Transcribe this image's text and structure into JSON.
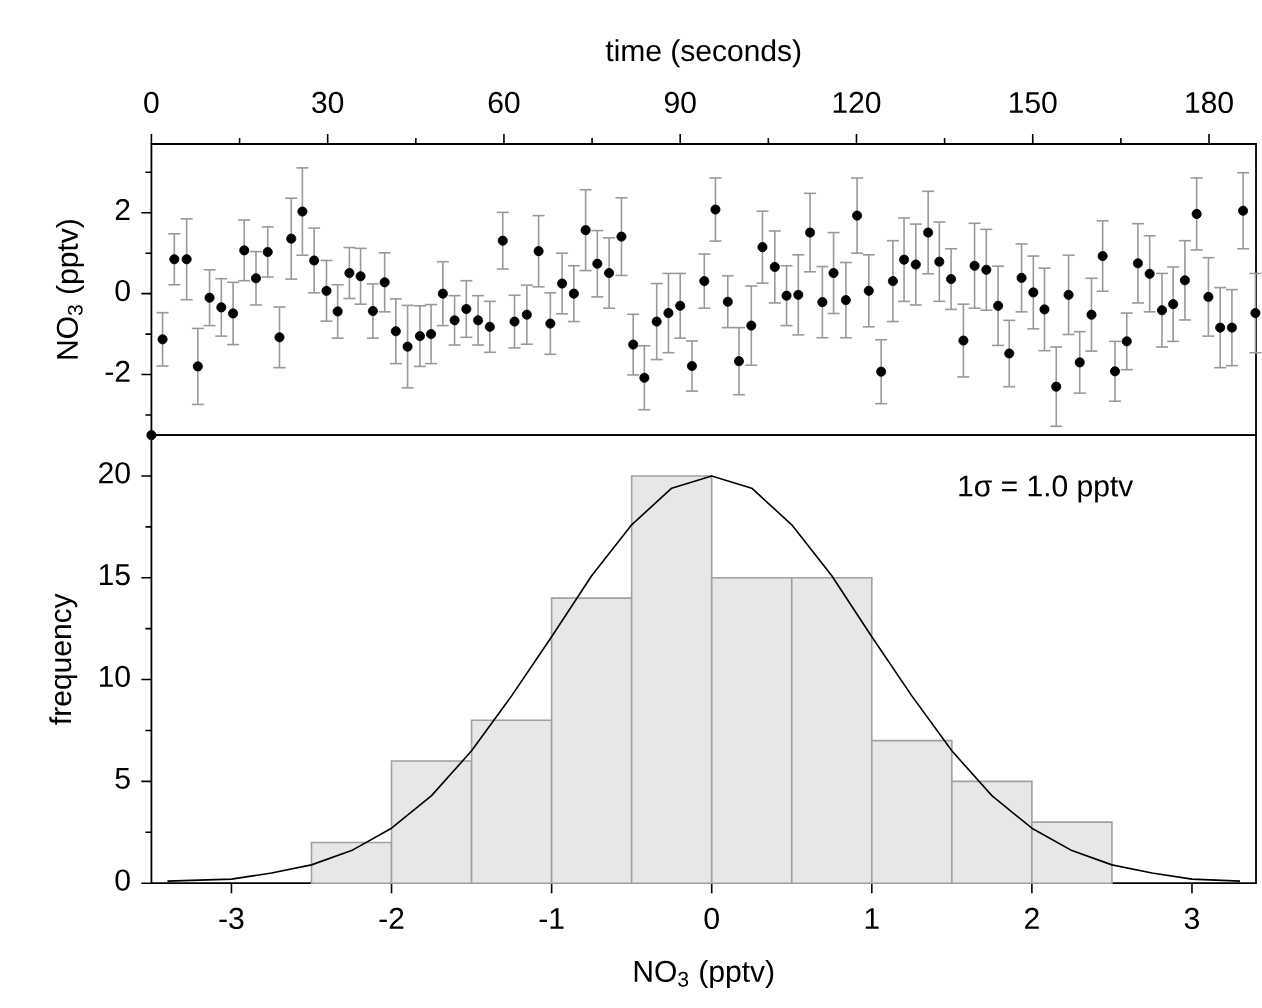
{
  "chart_data": [
    {
      "type": "scatter",
      "xlabel": "time (seconds)",
      "ylabel": "NO$_{3}$ (pptv)",
      "xlim": [
        0,
        188
      ],
      "ylim": [
        -3.5,
        3.7
      ],
      "xticks": [
        0,
        {
          "value": 15,
          "label": null
        },
        30,
        {
          "value": 45,
          "label": null
        },
        60,
        {
          "value": 75,
          "label": null
        },
        90,
        {
          "value": 105,
          "label": null
        },
        120,
        {
          "value": 135,
          "label": null
        },
        150,
        {
          "value": 165,
          "label": null
        },
        180
      ],
      "yticks": [
        {
          "value": -3,
          "label": null
        },
        -2,
        {
          "value": -1,
          "label": null
        },
        0,
        {
          "value": 1,
          "label": null
        },
        2,
        {
          "value": 3,
          "label": null
        }
      ],
      "marker": "circle",
      "color": "#000000",
      "x": [
        0,
        1.9,
        3.9,
        6.0,
        7.9,
        9.9,
        11.9,
        13.9,
        15.8,
        17.8,
        19.8,
        21.8,
        23.8,
        25.7,
        27.7,
        29.8,
        31.7,
        33.7,
        35.6,
        37.7,
        39.7,
        41.6,
        43.6,
        45.7,
        47.6,
        49.6,
        51.6,
        53.6,
        55.6,
        57.6,
        59.8,
        61.8,
        63.9,
        65.9,
        67.9,
        69.9,
        71.9,
        73.9,
        75.9,
        77.9,
        80.0,
        82.0,
        83.9,
        86.0,
        88.0,
        90.0,
        92.0,
        94.1,
        96.0,
        98.1,
        100.0,
        102.1,
        104.0,
        106.1,
        108.1,
        110.1,
        112.1,
        114.2,
        116.1,
        118.2,
        120.1,
        122.1,
        124.2,
        126.2,
        128.1,
        130.1,
        132.2,
        134.1,
        136.1,
        138.2,
        140.1,
        142.1,
        144.1,
        146.0,
        148.1,
        150.1,
        152.0,
        154.0,
        156.1,
        158.0,
        160.0,
        161.9,
        164.0,
        166.0,
        167.9,
        169.9,
        172.0,
        173.9,
        175.9,
        177.9,
        179.9,
        181.9,
        183.9,
        185.8,
        187.9
      ],
      "values": [
        -3.5,
        -1.13,
        0.85,
        0.85,
        -1.8,
        -0.1,
        -0.34,
        -0.49,
        1.07,
        0.38,
        1.03,
        -1.08,
        1.36,
        2.03,
        0.82,
        0.07,
        -0.44,
        0.51,
        0.43,
        -0.43,
        0.28,
        -0.93,
        -1.31,
        -1.05,
        -1.0,
        0.0,
        -0.66,
        -0.38,
        -0.66,
        -0.82,
        1.31,
        -0.69,
        -0.52,
        1.05,
        -0.74,
        0.25,
        0.0,
        1.57,
        0.74,
        0.51,
        1.41,
        -1.26,
        -2.08,
        -0.69,
        -0.48,
        -0.3,
        -1.79,
        0.31,
        2.08,
        -0.2,
        -1.67,
        -0.79,
        1.15,
        0.66,
        -0.05,
        -0.03,
        1.51,
        -0.21,
        0.51,
        -0.16,
        1.93,
        0.07,
        -1.93,
        0.31,
        0.84,
        0.72,
        1.51,
        0.79,
        0.36,
        -1.16,
        0.69,
        0.59,
        -0.3,
        -1.48,
        0.39,
        0.03,
        -0.39,
        -2.3,
        -0.03,
        -1.7,
        -0.52,
        0.93,
        -1.92,
        -1.18,
        0.75,
        0.49,
        -0.41,
        -0.26,
        0.33,
        1.97,
        -0.08,
        -0.84,
        -0.84,
        2.05,
        -0.48
      ],
      "errors": [
        null,
        0.66,
        0.63,
        1.0,
        0.94,
        0.69,
        0.71,
        0.77,
        0.75,
        0.66,
        0.62,
        0.75,
        1.0,
        1.08,
        0.8,
        0.75,
        0.66,
        0.63,
        0.69,
        0.67,
        0.73,
        0.8,
        1.02,
        0.75,
        0.73,
        0.79,
        0.61,
        0.7,
        0.61,
        0.63,
        0.7,
        0.65,
        0.73,
        0.88,
        0.76,
        0.75,
        0.69,
        1.0,
        0.82,
        0.87,
        0.96,
        0.75,
        0.79,
        0.94,
        0.98,
        0.8,
        0.62,
        0.67,
        0.78,
        0.64,
        0.83,
        0.98,
        0.89,
        0.89,
        0.74,
        0.99,
        0.97,
        0.88,
        1.0,
        0.93,
        0.93,
        0.89,
        0.79,
        1.0,
        1.03,
        1.0,
        1.02,
        0.98,
        0.75,
        0.9,
        1.05,
        1.0,
        0.98,
        0.82,
        0.84,
        0.9,
        1.02,
        0.98,
        0.98,
        0.76,
        0.9,
        0.87,
        0.74,
        0.7,
        0.98,
        0.94,
        0.91,
        0.92,
        0.98,
        0.89,
        0.97,
        0.99,
        0.94,
        0.94,
        0.98
      ]
    },
    {
      "type": "histogram",
      "xlabel": "NO$_{3}$ (pptv)",
      "ylabel": "frequency",
      "xlim": [
        -3.5,
        3.4
      ],
      "ylim": [
        0,
        22
      ],
      "xticks": [
        -3,
        -2,
        -1,
        0,
        1,
        2,
        3
      ],
      "yticks": [
        0,
        {
          "value": 2.5,
          "label": null
        },
        5,
        {
          "value": 7.5,
          "label": null
        },
        10,
        {
          "value": 12.5,
          "label": null
        },
        15,
        {
          "value": 17.5,
          "label": null
        },
        20
      ],
      "annotations": [
        "1σ = 1.0 pptv"
      ],
      "series": [
        {
          "type": "histogram",
          "color": "#a0a0a0",
          "bins": [
            -2.5,
            -2,
            -1.5,
            -1,
            -0.5,
            0,
            0.5,
            1,
            1.5,
            2,
            2.5
          ],
          "values": [
            2,
            6,
            8,
            14,
            20,
            15,
            15,
            7,
            5,
            3
          ]
        },
        {
          "type": "line",
          "color": "#000000",
          "x": [
            -3.4,
            -3,
            -2.75,
            -2.5,
            -2.25,
            -2,
            -1.75,
            -1.5,
            -1.25,
            -1,
            -0.75,
            -0.5,
            -0.25,
            0,
            0.25,
            0.5,
            0.75,
            1,
            1.25,
            1.5,
            1.75,
            2,
            2.25,
            2.5,
            2.75,
            3,
            3.3
          ],
          "values": [
            0.1,
            0.2,
            0.5,
            0.9,
            1.6,
            2.7,
            4.3,
            6.5,
            9.2,
            12.1,
            15.1,
            17.6,
            19.4,
            20,
            19.4,
            17.6,
            15.1,
            12.1,
            9.2,
            6.5,
            4.3,
            2.7,
            1.6,
            0.9,
            0.5,
            0.2,
            0.1
          ]
        }
      ]
    }
  ]
}
